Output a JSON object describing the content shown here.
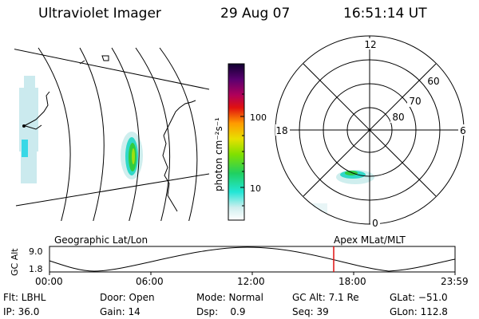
{
  "header": {
    "instrument": "Ultraviolet Imager",
    "date": "29 Aug 07",
    "time": "16:51:14 UT"
  },
  "colorbar": {
    "unit": "photon cm⁻²s⁻¹",
    "ticks": [
      "100",
      "10"
    ]
  },
  "polar_plot": {
    "mlt_labels": [
      "12",
      "18",
      "6",
      "0"
    ],
    "mlat_labels": [
      "60",
      "70",
      "80"
    ]
  },
  "altitude_plot": {
    "left_title": "Geographic Lat/Lon",
    "right_title": "Apex MLat/MLT",
    "ylabel": "GC Alt",
    "ymax_label": "9.0",
    "ymin_label": "1.8",
    "time_ticks": [
      "00:00",
      "06:00",
      "12:00",
      "18:00",
      "23:59"
    ],
    "current_time_marker": "16:51"
  },
  "status": {
    "filter": "Flt: LBHL",
    "ip": "IP: 36.0",
    "door": "Door: Open",
    "gain": "Gain: 14",
    "mode": "Mode: Normal",
    "dsp": "Dsp:    0.9",
    "gc_alt": "GC Alt: 7.1 Re",
    "seq": "Seq: 39",
    "glat": "GLat: −51.0",
    "glon": "GLon: 112.8"
  },
  "colors": {
    "marker": "#e01010",
    "aurora_core": "#22cc33",
    "aurora_edge": "#22d0e0"
  }
}
